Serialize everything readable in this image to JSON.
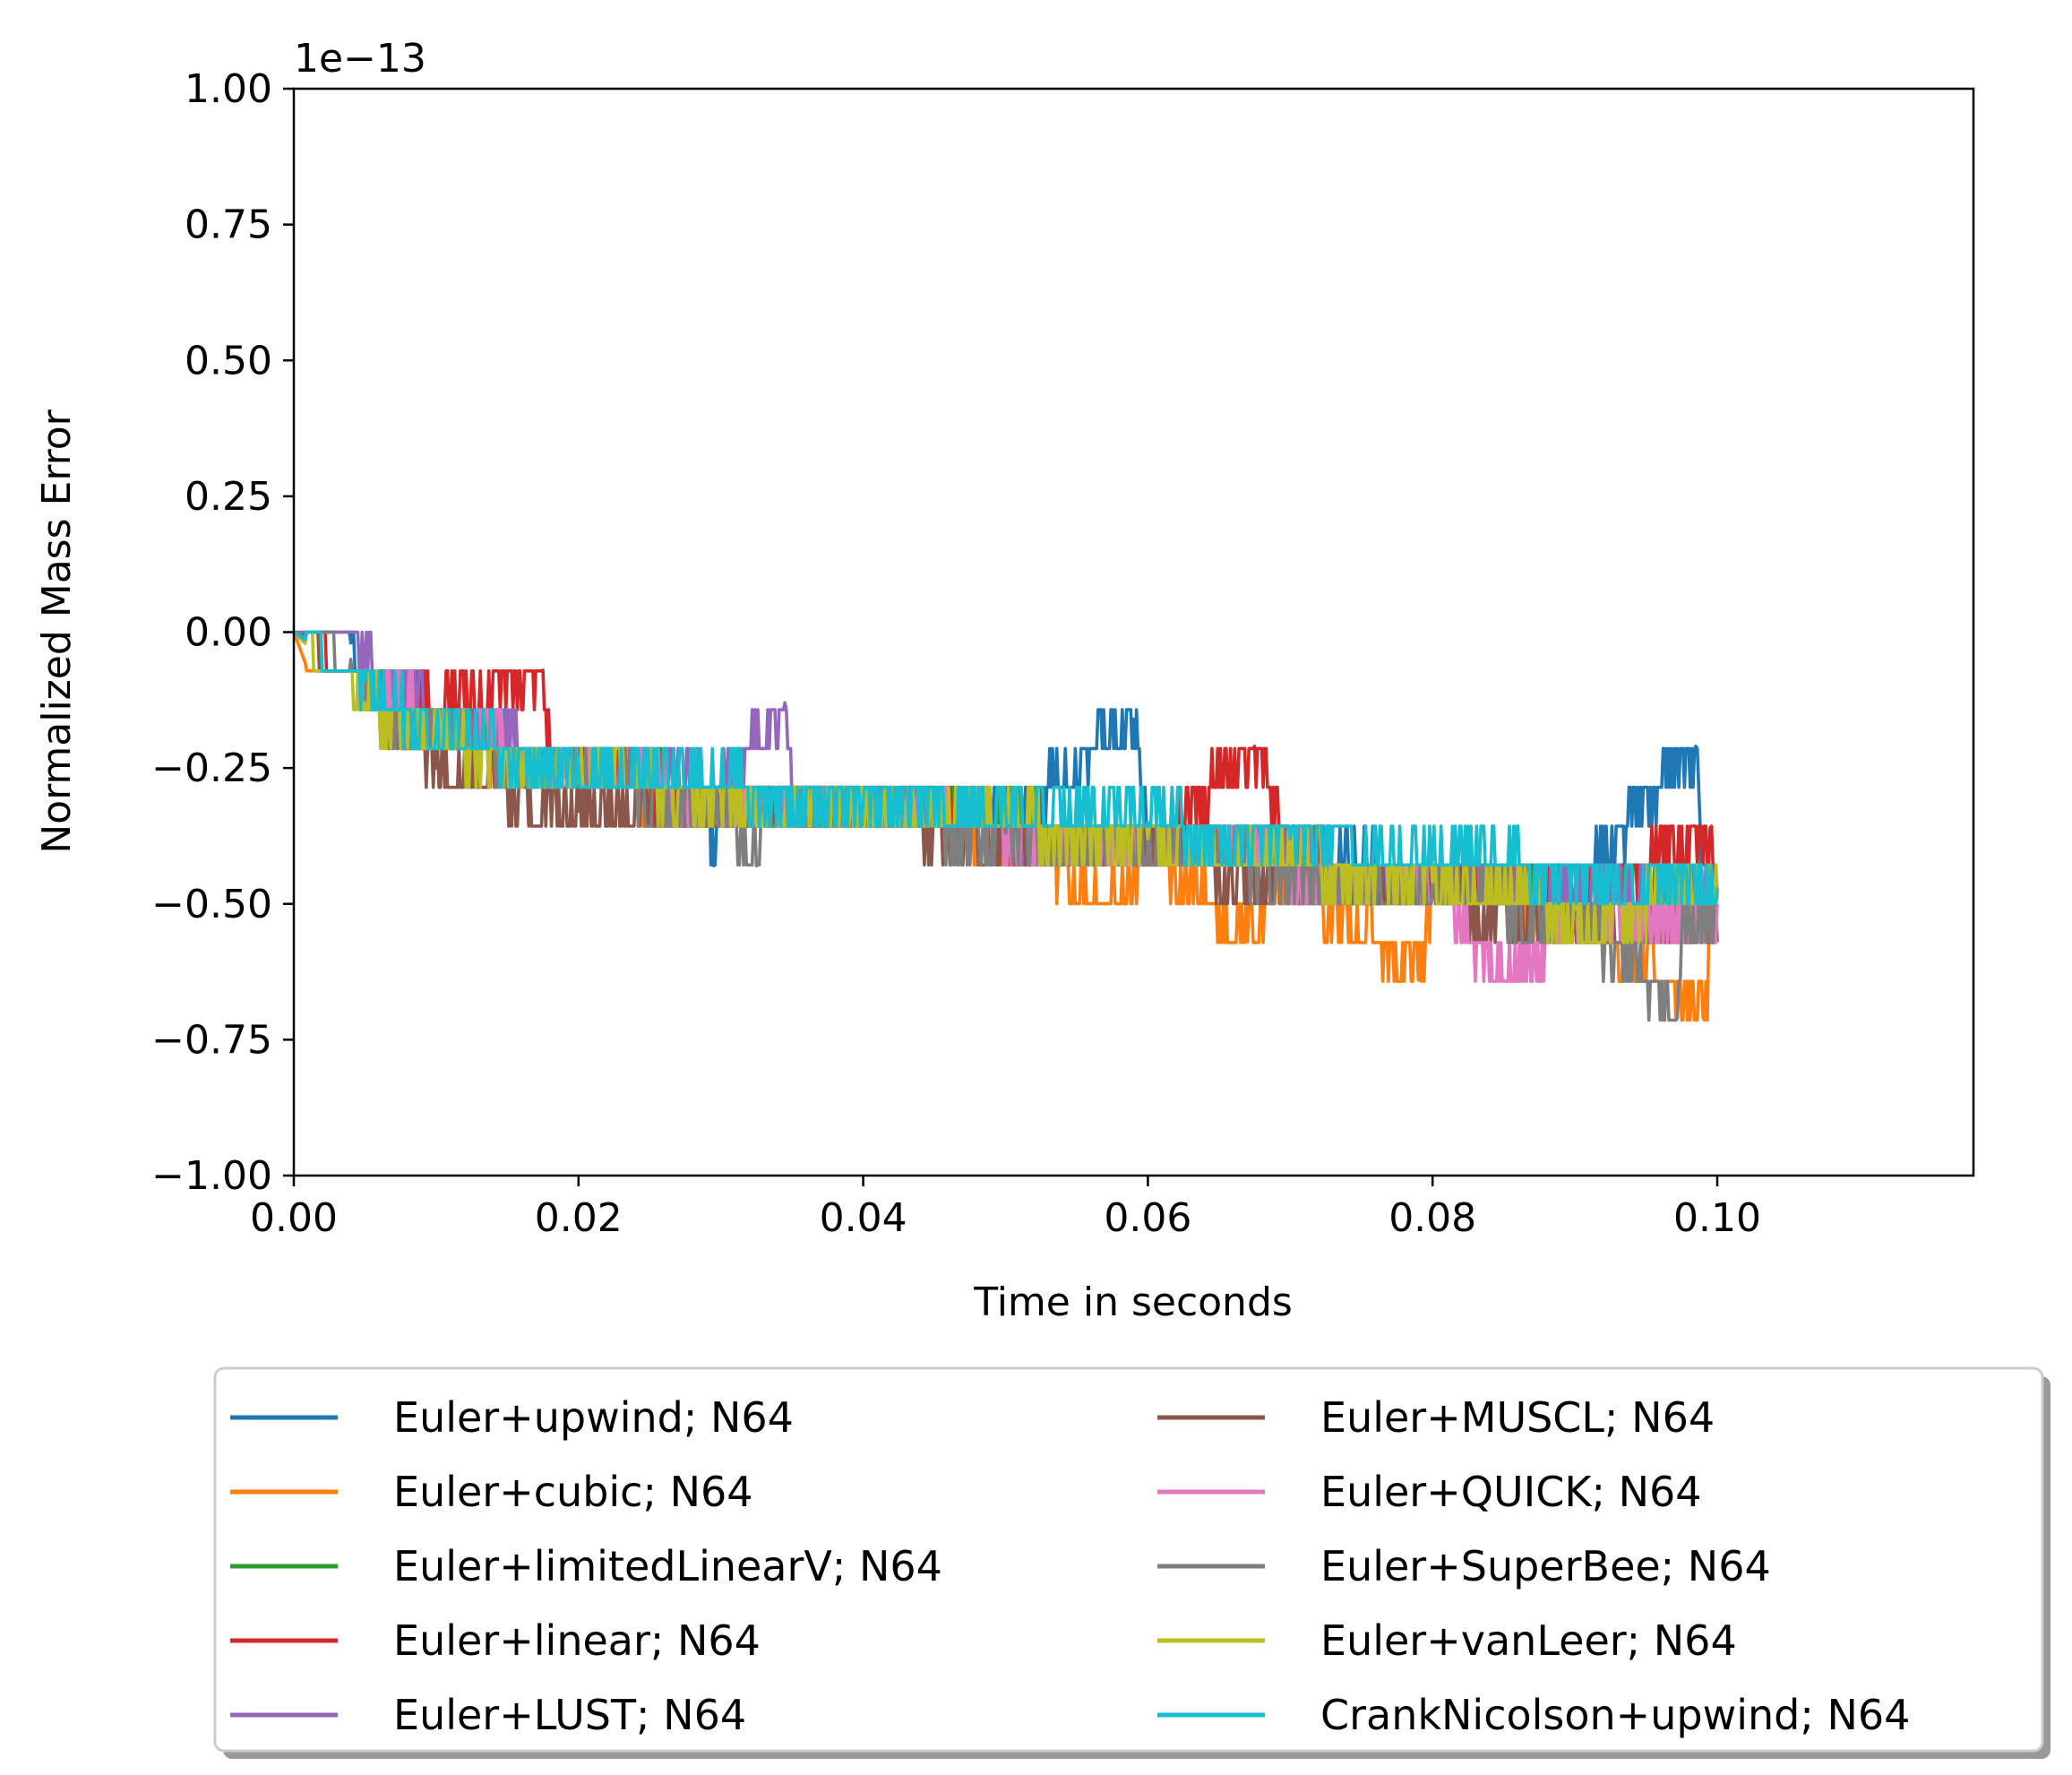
{
  "chart_data": {
    "type": "line",
    "title": "",
    "xlabel": "Time in seconds",
    "ylabel": "Normalized Mass Error",
    "y_offset_label": "1e−13",
    "y_scale_factor": 1e-13,
    "xlim": [
      0.0,
      0.118
    ],
    "ylim": [
      -1.0,
      1.0
    ],
    "grid": false,
    "legend_placement": "below plot, two columns, shadowed frame",
    "x_ticks": [
      {
        "value": 0.0,
        "label": "0.00"
      },
      {
        "value": 0.02,
        "label": "0.02"
      },
      {
        "value": 0.04,
        "label": "0.04"
      },
      {
        "value": 0.06,
        "label": "0.06"
      },
      {
        "value": 0.08,
        "label": "0.08"
      },
      {
        "value": 0.1,
        "label": "0.10"
      }
    ],
    "y_ticks": [
      {
        "value": 1.0,
        "label": "1.00"
      },
      {
        "value": 0.75,
        "label": "0.75"
      },
      {
        "value": 0.5,
        "label": "0.50"
      },
      {
        "value": 0.25,
        "label": "0.25"
      },
      {
        "value": 0.0,
        "label": "0.00"
      },
      {
        "value": -0.25,
        "label": "−0.25"
      },
      {
        "value": -0.5,
        "label": "−0.50"
      },
      {
        "value": -0.75,
        "label": "−0.75"
      },
      {
        "value": -1.0,
        "label": "−1.00"
      }
    ],
    "series": [
      {
        "name": "Euler+upwind; N64",
        "color": "#1f77b4",
        "x": [
          0,
          0.004,
          0.005,
          0.01,
          0.02,
          0.029,
          0.0295,
          0.03,
          0.04,
          0.05,
          0.059,
          0.06,
          0.07,
          0.08,
          0.09,
          0.0985,
          0.099,
          0.1
        ],
        "y": [
          0,
          -0.02,
          -0.08,
          -0.17,
          -0.26,
          -0.3,
          -0.43,
          -0.31,
          -0.33,
          -0.35,
          -0.16,
          -0.37,
          -0.41,
          -0.44,
          -0.47,
          -0.21,
          -0.5,
          -0.48
        ]
      },
      {
        "name": "Euler+cubic; N64",
        "color": "#ff7f0e",
        "x": [
          0,
          0.001,
          0.005,
          0.01,
          0.02,
          0.03,
          0.04,
          0.05,
          0.058,
          0.06,
          0.067,
          0.07,
          0.079,
          0.08,
          0.09,
          0.099,
          0.1
        ],
        "y": [
          0,
          -0.07,
          -0.1,
          -0.19,
          -0.27,
          -0.31,
          -0.34,
          -0.37,
          -0.5,
          -0.4,
          -0.57,
          -0.45,
          -0.64,
          -0.48,
          -0.52,
          -0.71,
          -0.5
        ]
      },
      {
        "name": "Euler+limitedLinearV; N64",
        "color": "#2ca02c",
        "x": [
          0,
          0.005,
          0.01,
          0.02,
          0.03,
          0.04,
          0.05,
          0.06,
          0.07,
          0.08,
          0.09,
          0.1
        ],
        "y": [
          0,
          -0.1,
          -0.18,
          -0.26,
          -0.3,
          -0.32,
          -0.35,
          -0.38,
          -0.42,
          -0.45,
          -0.5,
          -0.48
        ]
      },
      {
        "name": "Euler+linear; N64",
        "color": "#d62728",
        "x": [
          0,
          0.005,
          0.01,
          0.0175,
          0.018,
          0.02,
          0.03,
          0.04,
          0.05,
          0.06,
          0.0675,
          0.07,
          0.08,
          0.09,
          0.0995,
          0.1
        ],
        "y": [
          0,
          -0.08,
          -0.15,
          -0.07,
          -0.22,
          -0.27,
          -0.3,
          -0.33,
          -0.36,
          -0.39,
          -0.21,
          -0.42,
          -0.45,
          -0.5,
          -0.36,
          -0.5
        ]
      },
      {
        "name": "Euler+LUST; N64",
        "color": "#9467bd",
        "x": [
          0,
          0.004,
          0.005,
          0.01,
          0.02,
          0.03,
          0.0345,
          0.035,
          0.04,
          0.05,
          0.06,
          0.07,
          0.08,
          0.09,
          0.1
        ],
        "y": [
          0,
          0.0,
          -0.06,
          -0.16,
          -0.25,
          -0.29,
          -0.13,
          -0.31,
          -0.33,
          -0.36,
          -0.39,
          -0.42,
          -0.45,
          -0.49,
          -0.48
        ]
      },
      {
        "name": "Euler+MUSCL; N64",
        "color": "#8c564b",
        "x": [
          0,
          0.005,
          0.01,
          0.02,
          0.03,
          0.04,
          0.05,
          0.06,
          0.07,
          0.08,
          0.09,
          0.1
        ],
        "y": [
          0,
          -0.1,
          -0.25,
          -0.33,
          -0.35,
          -0.34,
          -0.38,
          -0.4,
          -0.46,
          -0.49,
          -0.53,
          -0.57
        ]
      },
      {
        "name": "Euler+QUICK; N64",
        "color": "#e377c2",
        "x": [
          0,
          0.005,
          0.01,
          0.02,
          0.03,
          0.04,
          0.05,
          0.06,
          0.07,
          0.08,
          0.085,
          0.09,
          0.1
        ],
        "y": [
          0,
          -0.09,
          -0.17,
          -0.26,
          -0.3,
          -0.33,
          -0.36,
          -0.4,
          -0.43,
          -0.47,
          -0.64,
          -0.52,
          -0.5
        ]
      },
      {
        "name": "Euler+SuperBee; N64",
        "color": "#7f7f7f",
        "x": [
          0,
          0.004,
          0.005,
          0.01,
          0.02,
          0.03,
          0.0325,
          0.033,
          0.04,
          0.05,
          0.06,
          0.07,
          0.08,
          0.09,
          0.0972,
          0.0975,
          0.1
        ],
        "y": [
          0,
          -0.05,
          -0.13,
          -0.19,
          -0.27,
          -0.31,
          -0.43,
          -0.32,
          -0.34,
          -0.37,
          -0.4,
          -0.44,
          -0.48,
          -0.52,
          -0.71,
          -0.55,
          -0.5
        ]
      },
      {
        "name": "Euler+vanLeer; N64",
        "color": "#bcbd22",
        "x": [
          0,
          0.005,
          0.01,
          0.02,
          0.03,
          0.04,
          0.05,
          0.06,
          0.07,
          0.08,
          0.09,
          0.1
        ],
        "y": [
          0,
          -0.13,
          -0.2,
          -0.27,
          -0.3,
          -0.32,
          -0.35,
          -0.38,
          -0.42,
          -0.46,
          -0.51,
          -0.49
        ]
      },
      {
        "name": "CrankNicolson+upwind; N64",
        "color": "#17becf",
        "x": [
          0,
          0.005,
          0.01,
          0.02,
          0.03,
          0.04,
          0.05,
          0.06,
          0.07,
          0.08,
          0.09,
          0.1
        ],
        "y": [
          0,
          -0.09,
          -0.19,
          -0.25,
          -0.28,
          -0.31,
          -0.33,
          -0.35,
          -0.38,
          -0.41,
          -0.44,
          -0.47
        ]
      }
    ]
  }
}
